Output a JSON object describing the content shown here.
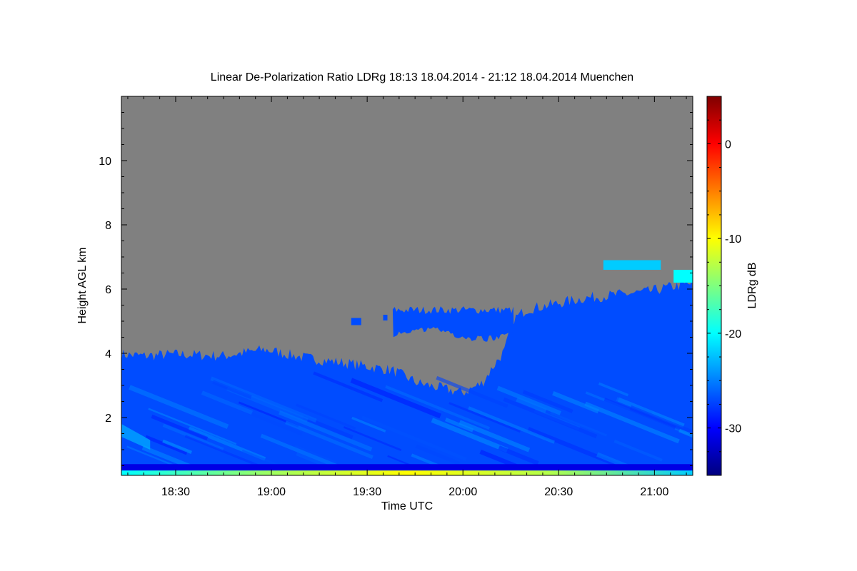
{
  "chart_data": {
    "type": "heatmap",
    "title": "Linear De-Polarization Ratio LDRg   18:13 18.04.2014 - 21:12 18.04.2014 Muenchen",
    "xlabel": "Time UTC",
    "ylabel": "Height AGL km",
    "x_range": [
      "18:13",
      "21:12"
    ],
    "xlim_minutes_utc": [
      1093,
      1272
    ],
    "x_ticks": [
      {
        "label": "18:30",
        "minutes": 1110
      },
      {
        "label": "19:00",
        "minutes": 1140
      },
      {
        "label": "19:30",
        "minutes": 1170
      },
      {
        "label": "20:00",
        "minutes": 1200
      },
      {
        "label": "20:30",
        "minutes": 1230
      },
      {
        "label": "21:00",
        "minutes": 1260
      }
    ],
    "ylim": [
      0.2,
      12.0
    ],
    "y_ticks": [
      2,
      4,
      6,
      8,
      10
    ],
    "colorbar": {
      "label": "LDRg dB",
      "range": [
        -35,
        5
      ],
      "ticks": [
        0,
        -10,
        -20,
        -30
      ],
      "colormap": [
        "#00007f",
        "#0000ff",
        "#007fff",
        "#00ffff",
        "#7fff7f",
        "#ffff00",
        "#ff7f00",
        "#ff0000",
        "#7f0000"
      ]
    },
    "no_signal_color": "#808080",
    "signal_top_km": [
      {
        "t": 1093,
        "h": 3.9
      },
      {
        "t": 1100,
        "h": 3.85
      },
      {
        "t": 1110,
        "h": 3.9
      },
      {
        "t": 1125,
        "h": 3.85
      },
      {
        "t": 1138,
        "h": 4.05
      },
      {
        "t": 1150,
        "h": 3.8
      },
      {
        "t": 1165,
        "h": 3.6
      },
      {
        "t": 1178,
        "h": 3.4
      },
      {
        "t": 1186,
        "h": 3.0
      },
      {
        "t": 1193,
        "h": 2.85
      },
      {
        "t": 1200,
        "h": 2.7
      },
      {
        "t": 1206,
        "h": 3.0
      },
      {
        "t": 1210,
        "h": 3.6
      },
      {
        "t": 1213,
        "h": 4.0
      },
      {
        "t": 1216,
        "h": 5.0
      },
      {
        "t": 1220,
        "h": 5.3
      },
      {
        "t": 1228,
        "h": 5.45
      },
      {
        "t": 1238,
        "h": 5.65
      },
      {
        "t": 1248,
        "h": 5.75
      },
      {
        "t": 1258,
        "h": 5.85
      },
      {
        "t": 1265,
        "h": 6.0
      },
      {
        "t": 1272,
        "h": 6.1
      }
    ],
    "elevated_layer_19_30_20_15": {
      "time_range": [
        1178,
        1216
      ],
      "base_km": 4.6,
      "top_km": 5.35,
      "ldr_db": -27
    },
    "surface_layer": {
      "height_km": [
        0.2,
        0.35
      ],
      "ldr_db": [
        -18,
        -10
      ]
    },
    "boundary_layer_ldr_db": -27,
    "cirrus_patches": [
      {
        "t_range": [
          1244,
          1262
        ],
        "h_range": [
          6.6,
          6.9
        ],
        "ldr_db": -22
      },
      {
        "t_range": [
          1266,
          1272
        ],
        "h_range": [
          6.2,
          6.6
        ],
        "ldr_db": -20
      }
    ]
  }
}
